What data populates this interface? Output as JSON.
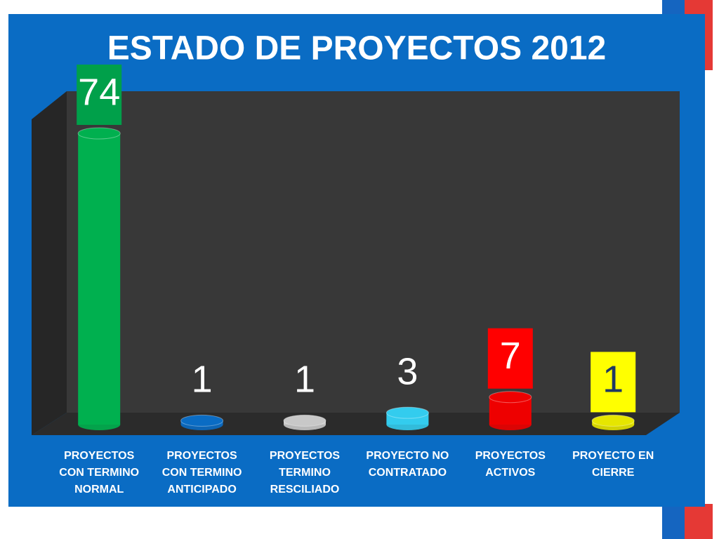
{
  "chart_data": {
    "type": "cylinder-bar",
    "title": "ESTADO DE PROYECTOS 2012",
    "categories": [
      "PROYECTOS CON TERMINO NORMAL",
      "PROYECTOS CON TERMINO ANTICIPADO",
      "PROYECTOS TERMINO RESCILIADO",
      "PROYECTO NO CONTRATADO",
      "PROYECTOS ACTIVOS",
      "PROYECTO EN CIERRE"
    ],
    "values": [
      74,
      1,
      1,
      3,
      7,
      1
    ],
    "colors": [
      "#00b04f",
      "#0a6cc4",
      "#c8c8c8",
      "#33ccee",
      "#ee0000",
      "#e6e600"
    ],
    "label_backgrounds": [
      "#00a04a",
      null,
      null,
      null,
      "#ff0000",
      "#ffff00"
    ],
    "label_text_colors": [
      "#ffffff",
      "#ffffff",
      "#ffffff",
      "#ffffff",
      "#ffffff",
      "#1f3864"
    ]
  }
}
